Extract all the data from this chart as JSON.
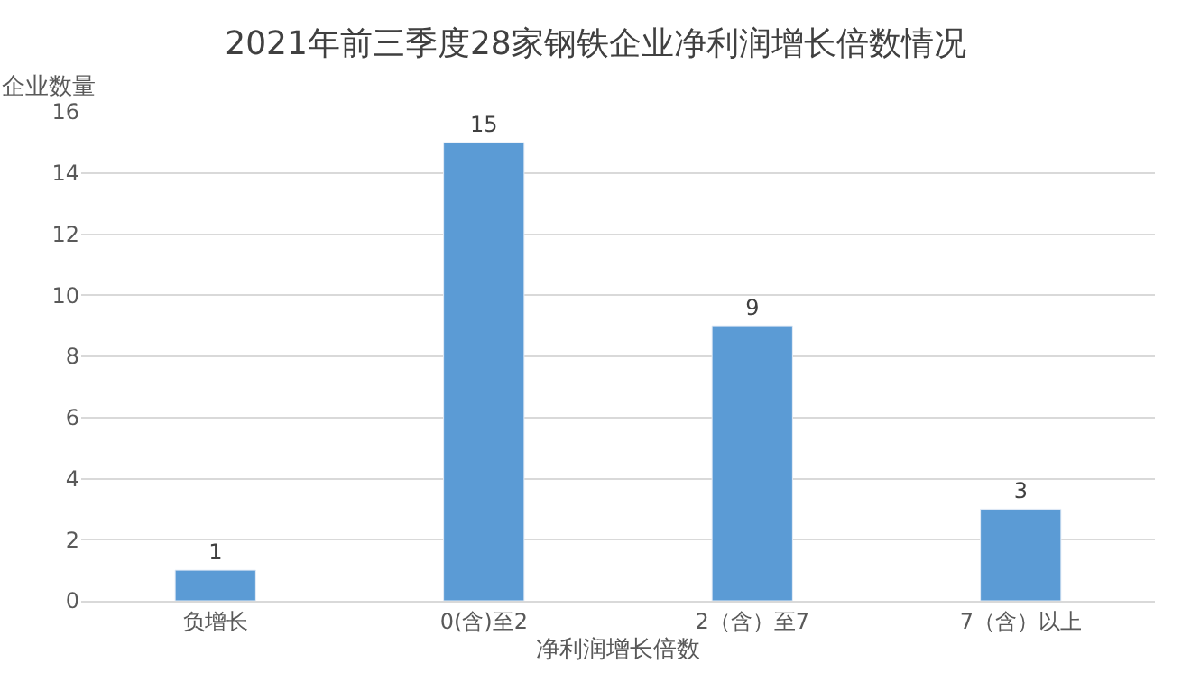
{
  "chart_data": {
    "type": "bar",
    "title": "2021年前三季度28家钢铁企业净利润增长倍数情况",
    "xlabel": "净利润增长倍数",
    "ylabel": "企业数量",
    "categories": [
      "负增长",
      "0(含)至2",
      "2（含）至7",
      "7（含）以上"
    ],
    "values": [
      1,
      15,
      9,
      3
    ],
    "color": "#5b9bd5",
    "ylim": [
      0,
      16
    ],
    "yticks": [
      0,
      2,
      4,
      6,
      8,
      10,
      12,
      14,
      16
    ],
    "grid": "y",
    "data_labels": true
  }
}
